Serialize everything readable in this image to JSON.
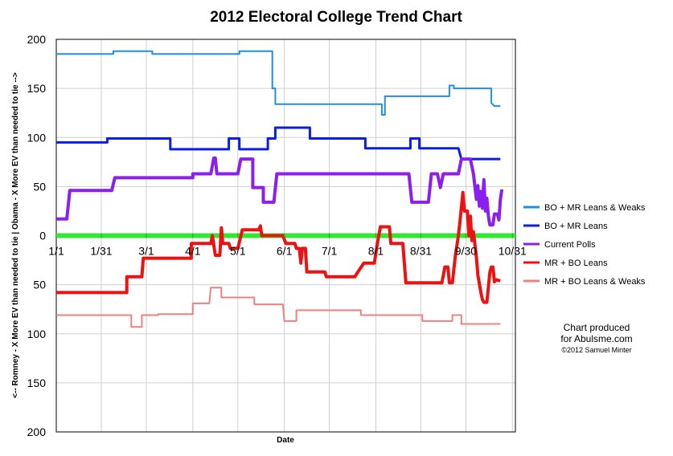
{
  "chart_data": {
    "type": "line",
    "title": "2012 Electoral College Trend Chart",
    "xlabel": "Date",
    "ylabel": "<-- Romney - X More EV than needed to tie |  Obama - X More EV than needed to tie -->",
    "xlim": [
      0,
      306
    ],
    "ylim": [
      -200,
      200
    ],
    "x_ticks": [
      {
        "label": "1/1",
        "value": 0
      },
      {
        "label": "1/31",
        "value": 30
      },
      {
        "label": "3/1",
        "value": 60
      },
      {
        "label": "4/1",
        "value": 91
      },
      {
        "label": "5/1",
        "value": 121
      },
      {
        "label": "6/1",
        "value": 152
      },
      {
        "label": "7/1",
        "value": 182
      },
      {
        "label": "8/1",
        "value": 213
      },
      {
        "label": "8/31",
        "value": 243
      },
      {
        "label": "9/30",
        "value": 273
      },
      {
        "label": "10/31",
        "value": 304
      }
    ],
    "y_ticks": [
      {
        "label": "200",
        "value": 200
      },
      {
        "label": "150",
        "value": 150
      },
      {
        "label": "100",
        "value": 100
      },
      {
        "label": "50",
        "value": 50
      },
      {
        "label": "0",
        "value": 0
      },
      {
        "label": "50",
        "value": -50
      },
      {
        "label": "100",
        "value": -100
      },
      {
        "label": "150",
        "value": -150
      },
      {
        "label": "200",
        "value": -200
      }
    ],
    "grid": true,
    "legend_position": "right",
    "series": [
      {
        "name": "BO + MR Leans & Weaks",
        "color": "#1f8fe0",
        "width": 2,
        "points": [
          [
            0,
            185
          ],
          [
            38,
            185
          ],
          [
            38,
            188
          ],
          [
            64,
            188
          ],
          [
            64,
            185
          ],
          [
            120,
            185
          ],
          [
            122,
            185
          ],
          [
            122,
            188
          ],
          [
            144,
            188
          ],
          [
            144,
            150
          ],
          [
            146,
            150
          ],
          [
            146,
            134
          ],
          [
            217,
            134
          ],
          [
            217,
            123
          ],
          [
            219,
            123
          ],
          [
            219,
            142
          ],
          [
            262,
            142
          ],
          [
            262,
            153
          ],
          [
            265,
            153
          ],
          [
            265,
            150
          ],
          [
            290,
            150
          ],
          [
            290,
            135
          ],
          [
            292,
            132
          ],
          [
            296,
            132
          ]
        ]
      },
      {
        "name": "BO + MR Leans",
        "color": "#0a1fe0",
        "width": 3,
        "points": [
          [
            0,
            95
          ],
          [
            34,
            95
          ],
          [
            34,
            99
          ],
          [
            76,
            99
          ],
          [
            76,
            88
          ],
          [
            115,
            88
          ],
          [
            115,
            99
          ],
          [
            122,
            99
          ],
          [
            122,
            88
          ],
          [
            141,
            88
          ],
          [
            141,
            99
          ],
          [
            146,
            99
          ],
          [
            146,
            110
          ],
          [
            169,
            110
          ],
          [
            169,
            99
          ],
          [
            206,
            99
          ],
          [
            206,
            89
          ],
          [
            236,
            89
          ],
          [
            236,
            99
          ],
          [
            242,
            99
          ],
          [
            242,
            89
          ],
          [
            268,
            89
          ],
          [
            270,
            78
          ],
          [
            296,
            78
          ]
        ]
      },
      {
        "name": "Current Polls",
        "color": "#8a1ff0",
        "width": 4,
        "points": [
          [
            0,
            17
          ],
          [
            7,
            17
          ],
          [
            9,
            46
          ],
          [
            37,
            46
          ],
          [
            39,
            59
          ],
          [
            91,
            59
          ],
          [
            91,
            63
          ],
          [
            103,
            63
          ],
          [
            105,
            79
          ],
          [
            106,
            79
          ],
          [
            107,
            63
          ],
          [
            121,
            63
          ],
          [
            123,
            78
          ],
          [
            131,
            78
          ],
          [
            131,
            49
          ],
          [
            138,
            49
          ],
          [
            138,
            34
          ],
          [
            145,
            34
          ],
          [
            147,
            63
          ],
          [
            235,
            63
          ],
          [
            237,
            34
          ],
          [
            248,
            34
          ],
          [
            250,
            63
          ],
          [
            254,
            63
          ],
          [
            256,
            49
          ],
          [
            258,
            63
          ],
          [
            268,
            63
          ],
          [
            270,
            78
          ],
          [
            276,
            78
          ],
          [
            278,
            63
          ],
          [
            280,
            37
          ],
          [
            281,
            51
          ],
          [
            282,
            30
          ],
          [
            283,
            45
          ],
          [
            284,
            28
          ],
          [
            285,
            57
          ],
          [
            286,
            25
          ],
          [
            287,
            38
          ],
          [
            288,
            20
          ],
          [
            289,
            11
          ],
          [
            291,
            11
          ],
          [
            292,
            22
          ],
          [
            294,
            22
          ],
          [
            295,
            16
          ],
          [
            296,
            37
          ],
          [
            297,
            47
          ]
        ]
      },
      {
        "name": "MR + BO Leans",
        "color": "#ee1111",
        "width": 4,
        "points": [
          [
            0,
            -58
          ],
          [
            47,
            -58
          ],
          [
            47,
            -42
          ],
          [
            57,
            -42
          ],
          [
            58,
            -23
          ],
          [
            90,
            -23
          ],
          [
            90,
            -8
          ],
          [
            103,
            -8
          ],
          [
            104,
            0
          ],
          [
            106,
            -20
          ],
          [
            109,
            -20
          ],
          [
            110,
            8
          ],
          [
            111,
            -8
          ],
          [
            115,
            -8
          ],
          [
            116,
            -13
          ],
          [
            121,
            -13
          ],
          [
            124,
            6
          ],
          [
            135,
            6
          ],
          [
            136,
            10
          ],
          [
            137,
            0
          ],
          [
            151,
            0
          ],
          [
            153,
            -8
          ],
          [
            159,
            -8
          ],
          [
            160,
            -13
          ],
          [
            162,
            -13
          ],
          [
            163,
            -28
          ],
          [
            164,
            -13
          ],
          [
            166,
            -13
          ],
          [
            167,
            -37
          ],
          [
            179,
            -37
          ],
          [
            180,
            -42
          ],
          [
            199,
            -42
          ],
          [
            201,
            -37
          ],
          [
            205,
            -28
          ],
          [
            212,
            -28
          ],
          [
            214,
            -8
          ],
          [
            216,
            9
          ],
          [
            222,
            9
          ],
          [
            223,
            -8
          ],
          [
            231,
            -8
          ],
          [
            233,
            -48
          ],
          [
            257,
            -48
          ],
          [
            259,
            -32
          ],
          [
            261,
            -32
          ],
          [
            262,
            -48
          ],
          [
            264,
            -48
          ],
          [
            266,
            -20
          ],
          [
            268,
            0
          ],
          [
            269,
            14
          ],
          [
            271,
            44
          ],
          [
            272,
            25
          ],
          [
            274,
            25
          ],
          [
            275,
            0
          ],
          [
            276,
            20
          ],
          [
            277,
            -5
          ],
          [
            278,
            4
          ],
          [
            280,
            -22
          ],
          [
            281,
            -40
          ],
          [
            283,
            -58
          ],
          [
            284,
            -65
          ],
          [
            285,
            -68
          ],
          [
            287,
            -68
          ],
          [
            289,
            -37
          ],
          [
            290,
            -32
          ],
          [
            291,
            -32
          ],
          [
            292,
            -47
          ],
          [
            293,
            -45
          ],
          [
            296,
            -46
          ]
        ]
      },
      {
        "name": "MR + BO Leans & Weaks",
        "color": "#f08080",
        "width": 2,
        "points": [
          [
            0,
            -81
          ],
          [
            50,
            -81
          ],
          [
            50,
            -93
          ],
          [
            57,
            -93
          ],
          [
            57,
            -81
          ],
          [
            68,
            -81
          ],
          [
            68,
            -80
          ],
          [
            91,
            -80
          ],
          [
            91,
            -69
          ],
          [
            102,
            -69
          ],
          [
            103,
            -53
          ],
          [
            110,
            -53
          ],
          [
            110,
            -63
          ],
          [
            132,
            -63
          ],
          [
            132,
            -70
          ],
          [
            151,
            -70
          ],
          [
            152,
            -87
          ],
          [
            160,
            -87
          ],
          [
            160,
            -76
          ],
          [
            203,
            -76
          ],
          [
            203,
            -81
          ],
          [
            244,
            -81
          ],
          [
            244,
            -87
          ],
          [
            264,
            -87
          ],
          [
            264,
            -81
          ],
          [
            270,
            -81
          ],
          [
            270,
            -90
          ],
          [
            296,
            -90
          ]
        ]
      },
      {
        "name": "",
        "color": "#33e833",
        "width": 6,
        "points": [
          [
            0,
            0
          ],
          [
            306,
            0
          ]
        ]
      }
    ],
    "annotations": [
      "Chart produced",
      "for Abulsme.com",
      "©2012 Samuel Minter"
    ]
  }
}
